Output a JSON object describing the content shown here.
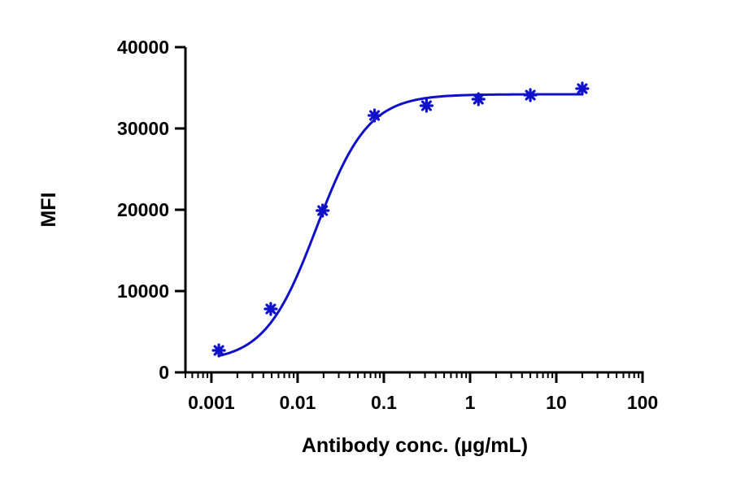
{
  "chart_data": {
    "type": "scatter",
    "title": "",
    "xlabel": "Antibody conc. (µg/mL)",
    "ylabel": "MFI",
    "x_scale": "log",
    "xlim": [
      0.0005,
      100
    ],
    "ylim": [
      0,
      40000
    ],
    "x_ticks": [
      0.001,
      0.01,
      0.1,
      1,
      10,
      100
    ],
    "x_tick_labels": [
      "0.001",
      "0.01",
      "0.1",
      "1",
      "10",
      "100"
    ],
    "y_ticks": [
      0,
      10000,
      20000,
      30000,
      40000
    ],
    "y_tick_labels": [
      "0",
      "10000",
      "20000",
      "30000",
      "40000"
    ],
    "grid": false,
    "legend": "none",
    "color": "#1010c8",
    "series": [
      {
        "marker": "asterisk",
        "x": [
          0.00122,
          0.00488,
          0.0195,
          0.078,
          0.3125,
          1.25,
          5,
          20
        ],
        "y": [
          2700,
          7800,
          19900,
          31600,
          32800,
          33600,
          34100,
          34900
        ]
      }
    ],
    "fit_curve": {
      "model": "4PL",
      "bottom": 1300,
      "top": 34200,
      "ec50": 0.0165,
      "hill": 1.45,
      "x_range": [
        0.00122,
        20
      ]
    }
  }
}
